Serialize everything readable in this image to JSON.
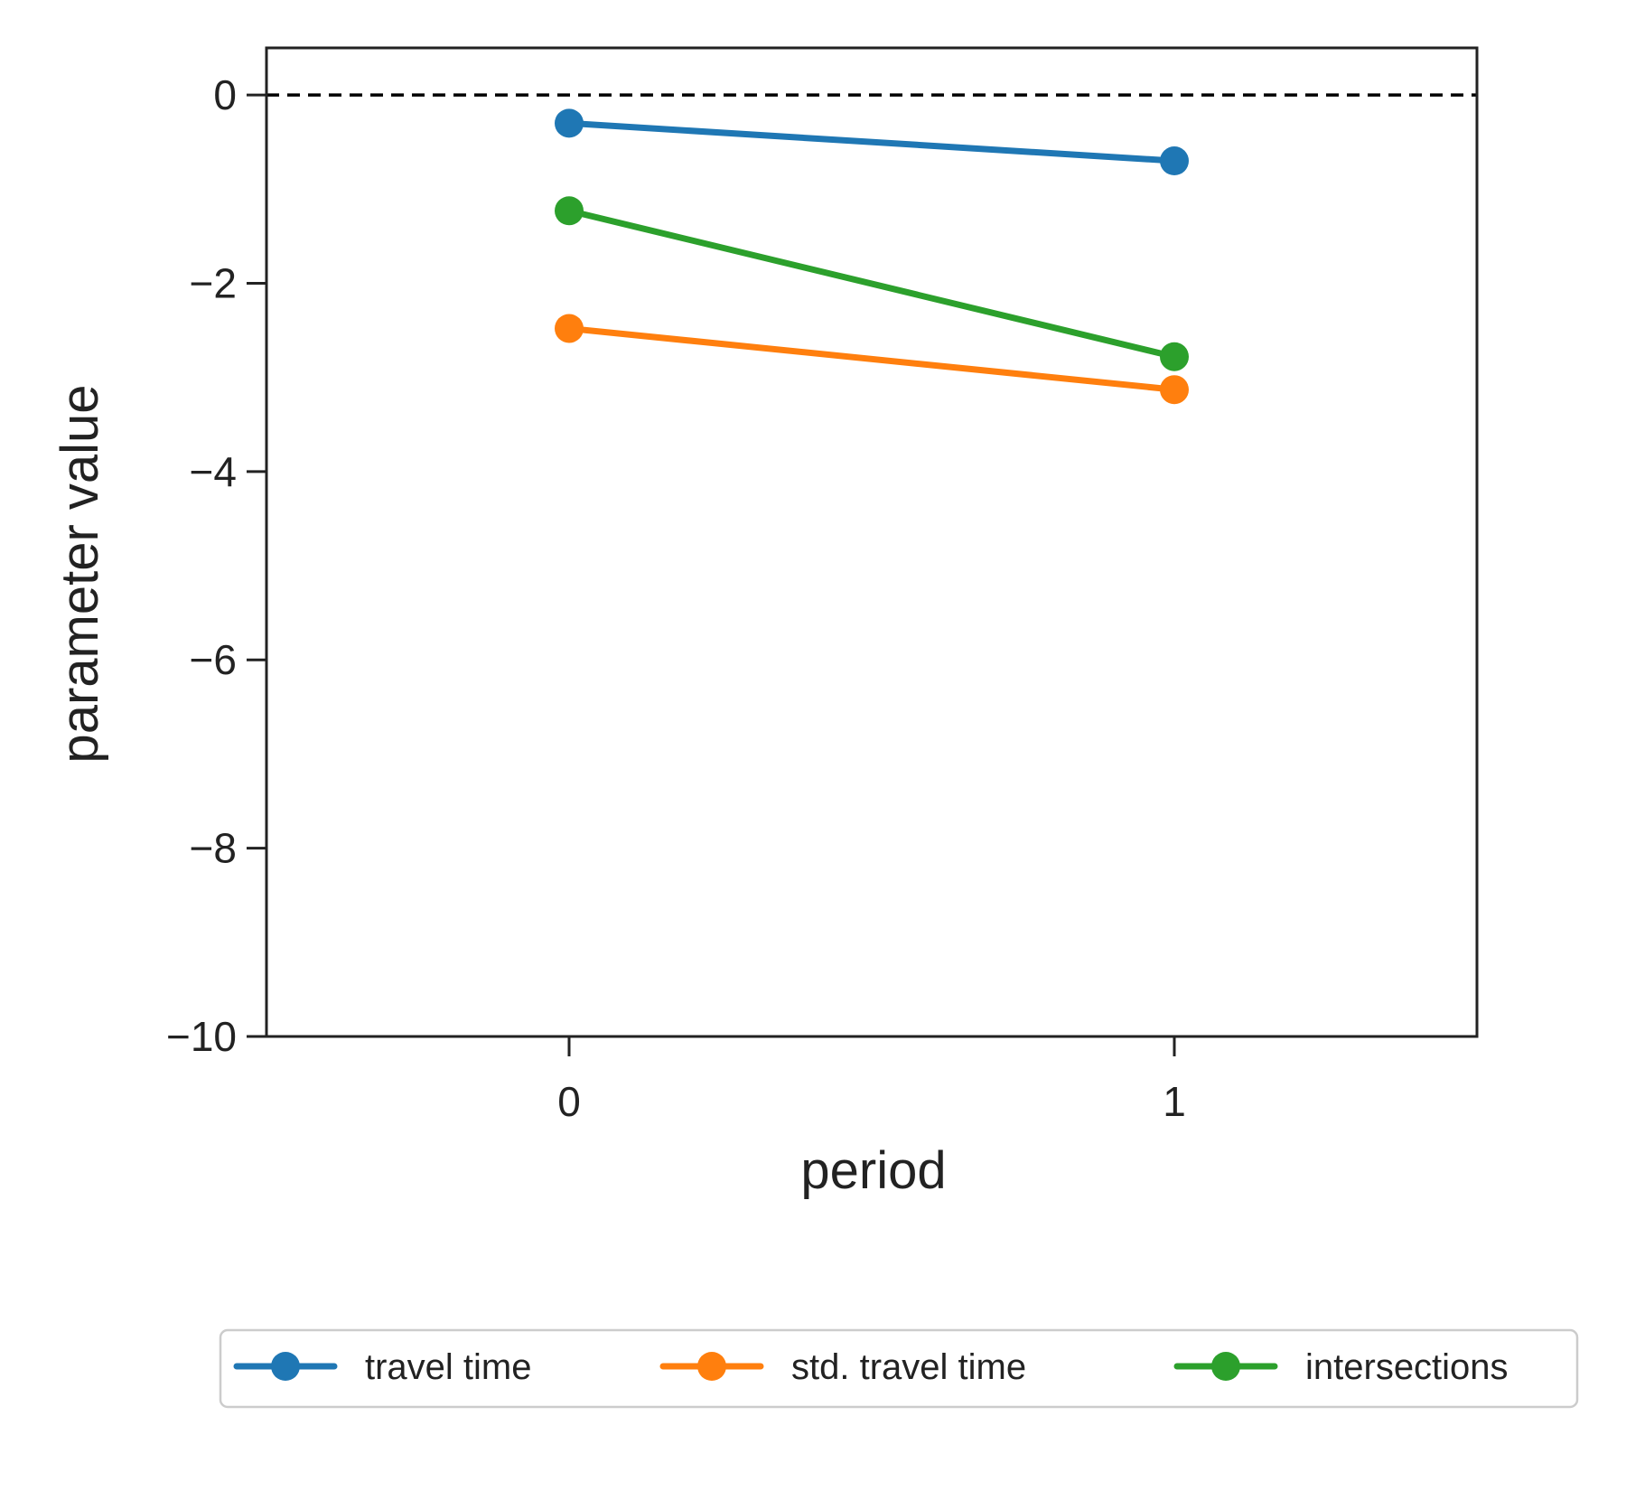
{
  "chart_data": {
    "type": "line",
    "title": "",
    "xlabel": "period",
    "ylabel": "parameter value",
    "categories": [
      "0",
      "1"
    ],
    "x": [
      0,
      1
    ],
    "ylim": [
      -10,
      0.5
    ],
    "xlim": [
      -0.5,
      1.5
    ],
    "yticks": [
      0,
      -2,
      -4,
      -6,
      -8,
      -10
    ],
    "ytick_labels": [
      "0",
      "−2",
      "−4",
      "−6",
      "−8",
      "−10"
    ],
    "xticks": [
      0,
      1
    ],
    "xtick_labels": [
      "0",
      "1"
    ],
    "grid": false,
    "reference_line": {
      "y": 0,
      "style": "dashed",
      "color": "#000000"
    },
    "legend_position": "bottom-center",
    "series": [
      {
        "name": "travel time",
        "values": [
          -0.3,
          -0.7
        ],
        "color": "#1f77b4"
      },
      {
        "name": "std. travel time",
        "values": [
          -2.48,
          -3.13
        ],
        "color": "#ff7f0e"
      },
      {
        "name": "intersections",
        "values": [
          -1.23,
          -2.78
        ],
        "color": "#2ca02c"
      }
    ]
  }
}
